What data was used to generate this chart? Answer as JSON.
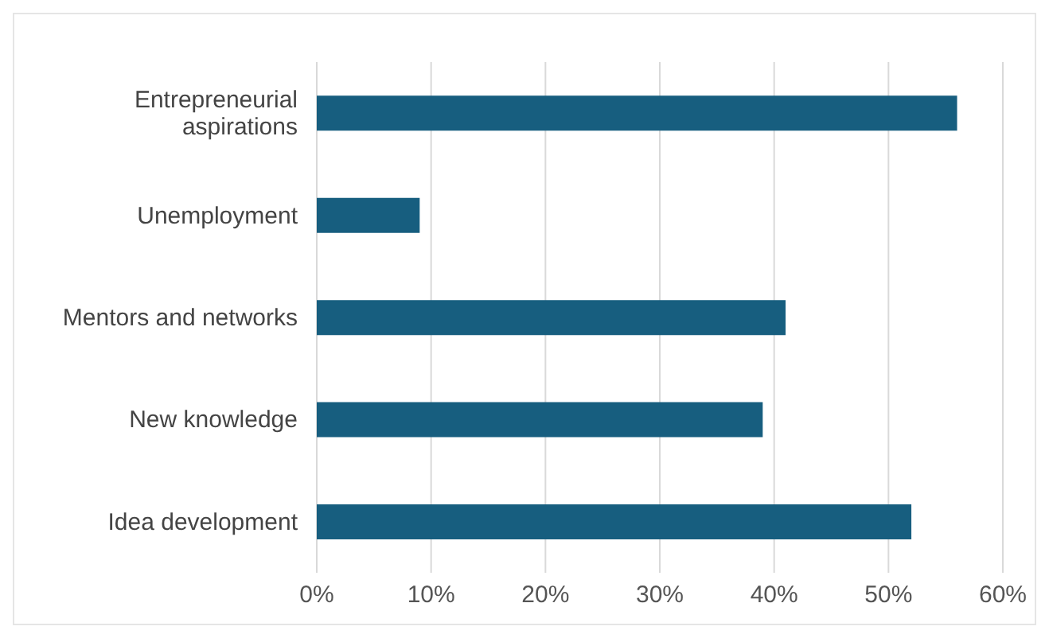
{
  "chart_data": {
    "type": "bar",
    "orientation": "horizontal",
    "categories": [
      "Entrepreneurial aspirations",
      "Unemployment",
      "Mentors and networks",
      "New knowledge",
      "Idea development"
    ],
    "values": [
      56,
      9,
      41,
      39,
      52
    ],
    "color": "#175e7f",
    "xlim": [
      0,
      60
    ],
    "xticks": [
      {
        "value": 0,
        "label": "0%"
      },
      {
        "value": 10,
        "label": "10%"
      },
      {
        "value": 20,
        "label": "20%"
      },
      {
        "value": 30,
        "label": "30%"
      },
      {
        "value": 40,
        "label": "40%"
      },
      {
        "value": 50,
        "label": "50%"
      },
      {
        "value": 60,
        "label": "60%"
      }
    ],
    "grid": "x"
  }
}
